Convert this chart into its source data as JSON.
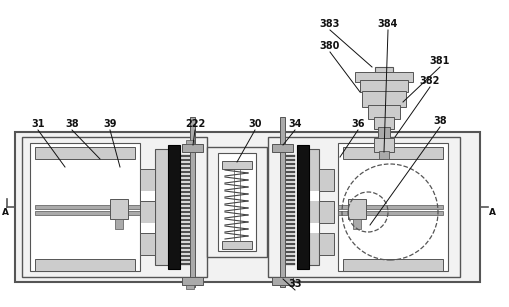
{
  "figsize": [
    5.1,
    3.07
  ],
  "dpi": 100,
  "bg": "#f2f2f2",
  "white": "#ffffff",
  "lc": "#555555",
  "black": "#111111",
  "dark": "#333333",
  "lgray": "#cccccc",
  "mgray": "#aaaaaa",
  "dgray": "#666666"
}
